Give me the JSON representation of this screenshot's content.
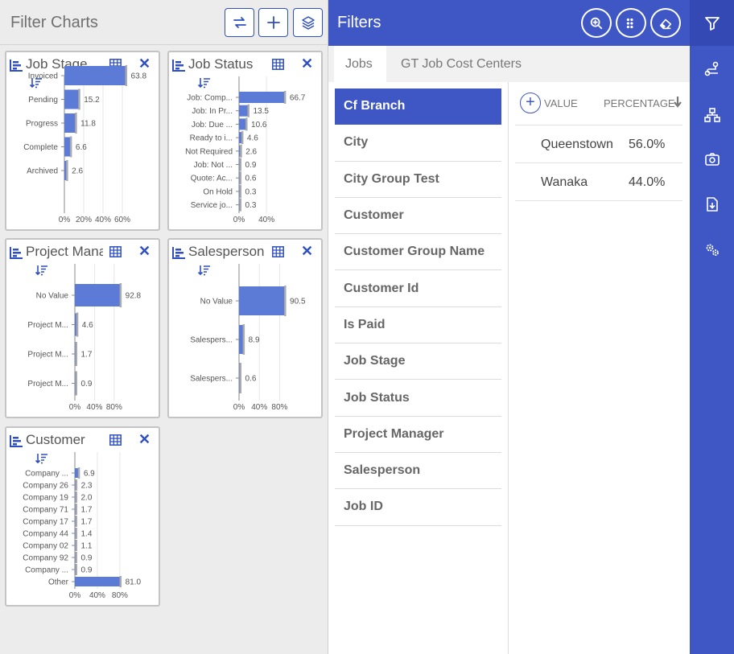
{
  "left_panel": {
    "title": "Filter Charts"
  },
  "filter_cards": [
    {
      "title": "Job Stage",
      "chart_data": {
        "type": "bar",
        "orientation": "horizontal",
        "categories": [
          "Invoiced",
          "Pending",
          "Progress",
          "Complete",
          "Archived"
        ],
        "values": [
          63.8,
          15.2,
          11.8,
          6.6,
          2.6
        ],
        "value_labels": [
          "63.8",
          "15.2",
          "11.8",
          "6.6",
          "2.6"
        ],
        "x_ticks": [
          "0%",
          "20%",
          "40%",
          "60%"
        ],
        "xlim": [
          0,
          65
        ]
      }
    },
    {
      "title": "Job Status",
      "chart_data": {
        "type": "bar",
        "orientation": "horizontal",
        "categories": [
          "Job: Comp...",
          "Job: In Pr...",
          "Job: Due ...",
          "Ready to i...",
          "Not Required",
          "Job: Not ...",
          "Quote: Ac...",
          "On Hold",
          "Service jo..."
        ],
        "values": [
          66.7,
          13.5,
          10.6,
          4.6,
          2.6,
          0.9,
          0.6,
          0.3,
          0.3
        ],
        "value_labels": [
          "66.7",
          "13.5",
          "10.6",
          "4.6",
          "2.6",
          "0.9",
          "0.6",
          "0.3",
          "0.3"
        ],
        "x_ticks": [
          "0%",
          "40%"
        ],
        "xlim": [
          0,
          68
        ]
      }
    },
    {
      "title": "Project Manager",
      "chart_data": {
        "type": "bar",
        "orientation": "horizontal",
        "categories": [
          "No Value",
          "Project M...",
          "Project M...",
          "Project M..."
        ],
        "values": [
          92.8,
          4.6,
          1.7,
          0.9
        ],
        "value_labels": [
          "92.8",
          "4.6",
          "1.7",
          "0.9"
        ],
        "x_ticks": [
          "0%",
          "40%",
          "80%"
        ],
        "xlim": [
          0,
          95
        ]
      }
    },
    {
      "title": "Salesperson",
      "chart_data": {
        "type": "bar",
        "orientation": "horizontal",
        "categories": [
          "No Value",
          "Salespers...",
          "Salespers..."
        ],
        "values": [
          90.5,
          8.9,
          0.6
        ],
        "value_labels": [
          "90.5",
          "8.9",
          "0.6"
        ],
        "x_ticks": [
          "0%",
          "40%",
          "80%"
        ],
        "xlim": [
          0,
          92
        ]
      }
    },
    {
      "title": "Customer",
      "chart_data": {
        "type": "bar",
        "orientation": "horizontal",
        "categories": [
          "Company ...",
          "Company 26",
          "Company 19",
          "Company 71",
          "Company 17",
          "Company 44",
          "Company 02",
          "Company 92",
          "Company ...",
          "Other"
        ],
        "values": [
          6.9,
          2.3,
          2.0,
          1.7,
          1.7,
          1.4,
          1.1,
          0.9,
          0.9,
          81.0
        ],
        "value_labels": [
          "6.9",
          "2.3",
          "2.0",
          "1.7",
          "1.7",
          "1.4",
          "1.1",
          "0.9",
          "0.9",
          "81.0"
        ],
        "x_ticks": [
          "0%",
          "40%",
          "80%"
        ],
        "xlim": [
          0,
          83
        ]
      }
    }
  ],
  "center_panel": {
    "title": "Filters",
    "tabs": [
      {
        "label": "Jobs",
        "active": true
      },
      {
        "label": "GT Job Cost Centers",
        "active": false
      }
    ],
    "fields": [
      {
        "label": "Cf Branch",
        "active": true
      },
      {
        "label": "City"
      },
      {
        "label": "City Group Test"
      },
      {
        "label": "Customer"
      },
      {
        "label": "Customer Group Name"
      },
      {
        "label": "Customer Id"
      },
      {
        "label": "Is Paid"
      },
      {
        "label": "Job Stage"
      },
      {
        "label": "Job Status"
      },
      {
        "label": "Project Manager"
      },
      {
        "label": "Salesperson"
      },
      {
        "label": "Job ID"
      }
    ],
    "values_header": {
      "value": "VALUE",
      "percentage": "PERCENTAGE"
    },
    "values": [
      {
        "name": "Queenstown",
        "pct": "56.0%"
      },
      {
        "name": "Wanaka",
        "pct": "44.0%"
      }
    ]
  },
  "colors": {
    "accent": "#3f57c4",
    "bar": "#5b7bd6",
    "panel_bg": "#ececec"
  }
}
